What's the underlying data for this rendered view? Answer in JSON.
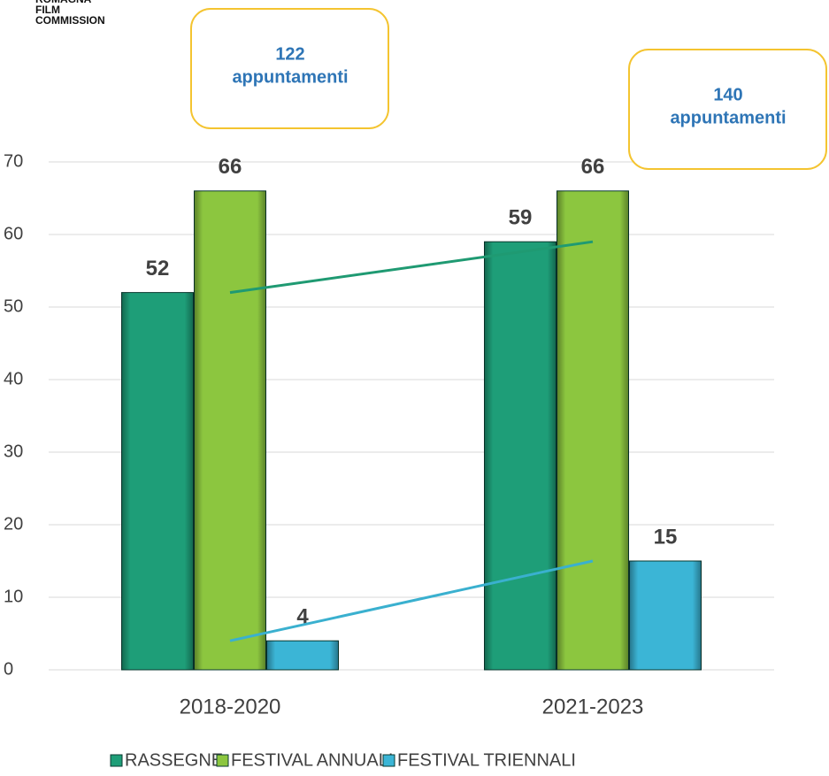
{
  "logo": [
    "ROMAGNA",
    "FILM",
    "COMMISSION"
  ],
  "chart_data": {
    "type": "bar",
    "categories": [
      "2018-2020",
      "2021-2023"
    ],
    "series": [
      {
        "name": "RASSEGNE",
        "color": "#1e9e78",
        "values": [
          52,
          59
        ],
        "trendline": true,
        "trend_color": "#1f9a72"
      },
      {
        "name": "FESTIVAL ANNUALI",
        "color": "#8cc63f",
        "values": [
          66,
          66
        ],
        "trendline": false
      },
      {
        "name": "FESTIVAL TRIENNALI",
        "color": "#3bb5d6",
        "values": [
          4,
          15
        ],
        "trendline": true,
        "trend_color": "#3ab0cf"
      }
    ],
    "ylim": [
      0,
      70
    ],
    "yticks": [
      0,
      10,
      20,
      30,
      40,
      50,
      60,
      70
    ],
    "grid": true,
    "legend": "bottom",
    "annotations": [
      [
        "122",
        "appuntamenti"
      ],
      [
        "140",
        "appuntamenti"
      ]
    ]
  }
}
